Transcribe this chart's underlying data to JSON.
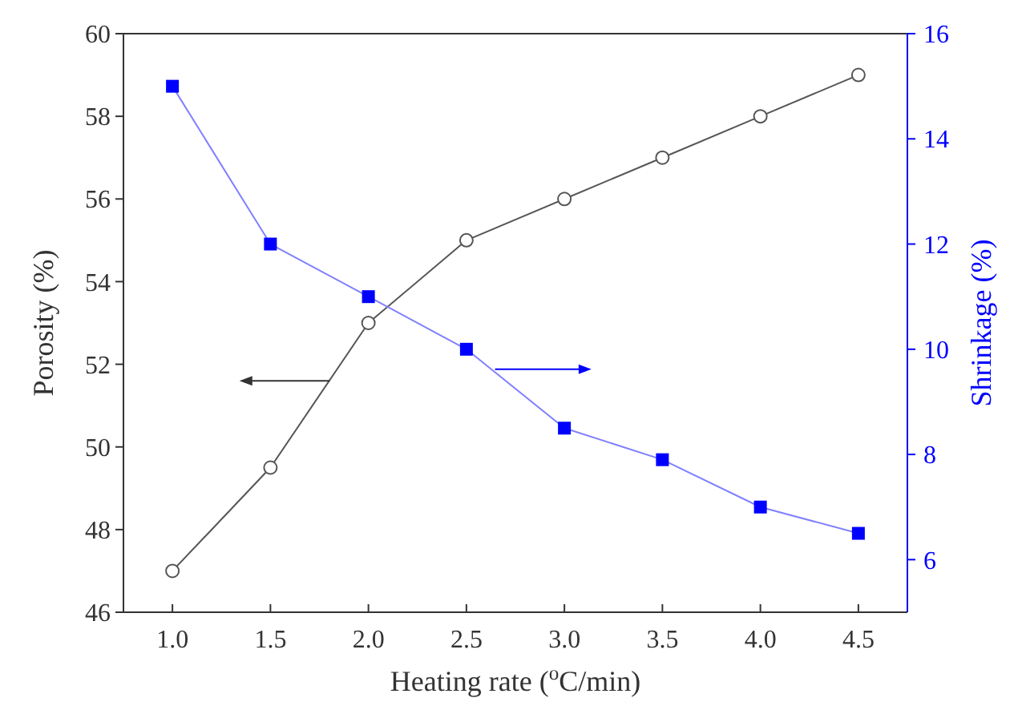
{
  "chart_data": {
    "type": "line",
    "xlabel": "Heating rate ($^{o}$C/min)",
    "ylabel": "Porosity (%)",
    "y2label": "Shrinkage (%)",
    "x": [
      1.0,
      1.5,
      2.0,
      2.5,
      3.0,
      3.5,
      4.0,
      4.5
    ],
    "series": [
      {
        "color": "#555555",
        "marker": "circle",
        "values": [
          47,
          49.5,
          53,
          55,
          56,
          57,
          58,
          59
        ]
      },
      {
        "color": "#0000ff",
        "marker": "square",
        "axis": "y2",
        "values": [
          15,
          12,
          11,
          10,
          8.5,
          7.9,
          7,
          6.5
        ]
      }
    ],
    "xlim": [
      0.75,
      4.75
    ],
    "xticks": [
      {
        "value": 1,
        "label": "1.0"
      },
      {
        "value": 1.5,
        "label": "1.5"
      },
      {
        "value": 2,
        "label": "2.0"
      },
      {
        "value": 2.5,
        "label": "2.5"
      },
      {
        "value": 3,
        "label": "3.0"
      },
      {
        "value": 3.5,
        "label": "3.5"
      },
      {
        "value": 4,
        "label": "4.0"
      },
      {
        "value": 4.5,
        "label": "4.5"
      }
    ],
    "ylim": [
      46,
      60
    ],
    "yticks": [
      46,
      48,
      50,
      52,
      54,
      56,
      58,
      60
    ],
    "y2lim": [
      5,
      16
    ],
    "y2ticks": [
      6,
      8,
      10,
      12,
      14,
      16
    ]
  }
}
